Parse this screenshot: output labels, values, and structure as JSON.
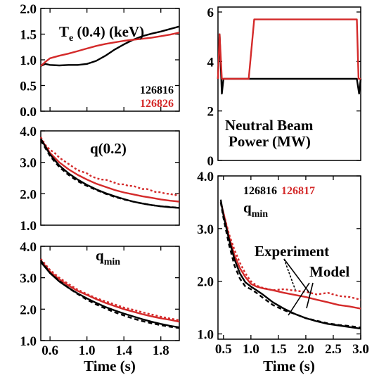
{
  "colors": {
    "black": "#000000",
    "red": "#d42a2a"
  },
  "chart_data": [
    {
      "id": "te",
      "type": "line",
      "title": "T_e (0.4) (keV)",
      "title_main": "T",
      "title_sub": "e",
      "title_rest": " (0.4) (keV)",
      "xlim": [
        0.5,
        2.0
      ],
      "ylim": [
        0.0,
        2.0
      ],
      "xticks": [
        0.6,
        1.0,
        1.4,
        1.8
      ],
      "yticks": [
        0.0,
        0.5,
        1.0,
        1.5,
        2.0
      ],
      "ytick_labels": [
        "0.0",
        "0.5",
        "1.0",
        "1.5",
        "2.0"
      ],
      "legend": [
        {
          "label": "126816",
          "color": "#000000"
        },
        {
          "label": "126826",
          "color": "#d42a2a"
        }
      ],
      "series": [
        {
          "color": "#000000",
          "style": "solid",
          "x": [
            0.5,
            0.55,
            0.6,
            0.7,
            0.8,
            0.9,
            1.0,
            1.1,
            1.2,
            1.3,
            1.4,
            1.5,
            1.6,
            1.7,
            1.8,
            1.9,
            2.0
          ],
          "y": [
            0.88,
            0.92,
            0.9,
            0.89,
            0.9,
            0.9,
            0.92,
            0.98,
            1.08,
            1.2,
            1.3,
            1.39,
            1.46,
            1.51,
            1.55,
            1.6,
            1.65
          ]
        },
        {
          "color": "#d42a2a",
          "style": "solid",
          "x": [
            0.5,
            0.55,
            0.6,
            0.7,
            0.8,
            0.9,
            1.0,
            1.1,
            1.2,
            1.3,
            1.4,
            1.5,
            1.6,
            1.7,
            1.8,
            1.9,
            2.0
          ],
          "y": [
            0.88,
            0.96,
            1.03,
            1.08,
            1.12,
            1.17,
            1.22,
            1.27,
            1.31,
            1.34,
            1.37,
            1.39,
            1.41,
            1.43,
            1.46,
            1.49,
            1.53
          ]
        }
      ]
    },
    {
      "id": "power",
      "type": "line",
      "title": "Neutral Beam Power (MW)",
      "title_line1": "Neutral Beam",
      "title_line2": "Power (MW)",
      "xlim": [
        0.4,
        3.0
      ],
      "ylim": [
        0.0,
        6.2
      ],
      "yticks": [
        0,
        2,
        4,
        6
      ],
      "ytick_labels": [
        "0",
        "2",
        "4",
        "6"
      ],
      "series": [
        {
          "color": "#000000",
          "style": "solid",
          "x": [
            0.4,
            0.43,
            0.47,
            0.5,
            0.55,
            1.0,
            2.9,
            2.93,
            2.97,
            3.0
          ],
          "y": [
            3.3,
            5.1,
            2.7,
            3.3,
            3.3,
            3.3,
            3.3,
            3.3,
            2.7,
            3.3
          ]
        },
        {
          "color": "#d42a2a",
          "style": "solid",
          "x": [
            0.4,
            0.43,
            0.47,
            0.5,
            0.55,
            0.96,
            1.06,
            2.93,
            2.96,
            3.0
          ],
          "y": [
            3.3,
            5.1,
            3.3,
            3.3,
            3.3,
            3.3,
            5.7,
            5.7,
            3.3,
            3.3
          ]
        }
      ]
    },
    {
      "id": "q02",
      "type": "line",
      "title": "q(0.2)",
      "xlim": [
        0.5,
        2.0
      ],
      "ylim": [
        1.0,
        4.0
      ],
      "yticks": [
        1.0,
        2.0,
        3.0,
        4.0
      ],
      "ytick_labels": [
        "1.0",
        "2.0",
        "3.0",
        "4.0"
      ],
      "series": [
        {
          "color": "#d42a2a",
          "style": "dotted",
          "x": [
            0.5,
            0.55,
            0.6,
            0.65,
            0.7,
            0.75,
            0.8,
            0.85,
            0.9,
            0.95,
            1.0,
            1.05,
            1.1,
            1.15,
            1.2,
            1.25,
            1.3,
            1.35,
            1.4,
            1.45,
            1.5,
            1.55,
            1.6,
            1.65,
            1.7,
            1.75,
            1.8,
            1.85,
            1.9,
            1.95,
            2.0
          ],
          "y": [
            3.8,
            3.55,
            3.4,
            3.3,
            3.15,
            3.05,
            2.95,
            2.85,
            2.75,
            2.7,
            2.65,
            2.55,
            2.5,
            2.45,
            2.45,
            2.4,
            2.35,
            2.3,
            2.3,
            2.25,
            2.25,
            2.2,
            2.15,
            2.15,
            2.1,
            2.05,
            2.05,
            2.0,
            2.0,
            1.95,
            2.0
          ]
        },
        {
          "color": "#d42a2a",
          "style": "solid",
          "x": [
            0.5,
            0.6,
            0.7,
            0.8,
            0.9,
            1.0,
            1.1,
            1.2,
            1.3,
            1.4,
            1.5,
            1.6,
            1.7,
            1.8,
            1.9,
            2.0
          ],
          "y": [
            3.75,
            3.3,
            3.0,
            2.78,
            2.6,
            2.45,
            2.32,
            2.22,
            2.12,
            2.04,
            1.98,
            1.92,
            1.87,
            1.82,
            1.78,
            1.75
          ]
        },
        {
          "color": "#000000",
          "style": "dashed",
          "x": [
            0.5,
            0.6,
            0.7,
            0.8,
            0.9,
            1.0,
            1.1,
            1.2,
            1.3,
            1.4,
            1.5,
            1.6,
            1.7,
            1.8,
            1.9,
            2.0
          ],
          "y": [
            3.7,
            3.2,
            2.85,
            2.6,
            2.4,
            2.25,
            2.12,
            2.0,
            1.9,
            1.82,
            1.75,
            1.69,
            1.64,
            1.6,
            1.58,
            1.55
          ]
        },
        {
          "color": "#000000",
          "style": "solid",
          "x": [
            0.5,
            0.6,
            0.7,
            0.8,
            0.9,
            1.0,
            1.1,
            1.2,
            1.3,
            1.4,
            1.5,
            1.6,
            1.7,
            1.8,
            1.9,
            2.0
          ],
          "y": [
            3.75,
            3.25,
            2.9,
            2.65,
            2.45,
            2.28,
            2.14,
            2.02,
            1.92,
            1.83,
            1.75,
            1.69,
            1.64,
            1.6,
            1.57,
            1.55
          ]
        }
      ]
    },
    {
      "id": "qmin_left",
      "type": "line",
      "title": "q_min",
      "title_main": "q",
      "title_sub": "min",
      "xlim": [
        0.5,
        2.0
      ],
      "ylim": [
        1.0,
        4.0
      ],
      "xticks": [
        0.6,
        1.0,
        1.4,
        1.8
      ],
      "xtick_labels": [
        "0.6",
        "1.0",
        "1.4",
        "1.8"
      ],
      "yticks": [
        1.0,
        2.0,
        3.0,
        4.0
      ],
      "ytick_labels": [
        "1.0",
        "2.0",
        "3.0",
        "4.0"
      ],
      "xlabel": "Time (s)",
      "series": [
        {
          "color": "#d42a2a",
          "style": "dotted",
          "x": [
            0.5,
            0.6,
            0.7,
            0.8,
            0.9,
            1.0,
            1.1,
            1.2,
            1.3,
            1.4,
            1.5,
            1.6,
            1.7,
            1.8,
            1.9,
            2.0
          ],
          "y": [
            3.6,
            3.25,
            3.0,
            2.8,
            2.62,
            2.48,
            2.35,
            2.25,
            2.15,
            2.05,
            1.98,
            1.9,
            1.83,
            1.76,
            1.7,
            1.65
          ]
        },
        {
          "color": "#d42a2a",
          "style": "solid",
          "x": [
            0.5,
            0.6,
            0.7,
            0.8,
            0.9,
            1.0,
            1.1,
            1.2,
            1.3,
            1.4,
            1.5,
            1.6,
            1.7,
            1.8,
            1.9,
            2.0
          ],
          "y": [
            3.55,
            3.2,
            2.95,
            2.75,
            2.58,
            2.45,
            2.32,
            2.2,
            2.1,
            2.0,
            1.92,
            1.84,
            1.77,
            1.71,
            1.66,
            1.6
          ]
        },
        {
          "color": "#000000",
          "style": "dashed",
          "x": [
            0.5,
            0.6,
            0.7,
            0.8,
            0.9,
            1.0,
            1.1,
            1.2,
            1.3,
            1.4,
            1.5,
            1.6,
            1.7,
            1.8,
            1.9,
            2.0
          ],
          "y": [
            3.55,
            3.15,
            2.9,
            2.68,
            2.48,
            2.3,
            2.15,
            2.02,
            1.9,
            1.8,
            1.7,
            1.62,
            1.55,
            1.49,
            1.44,
            1.4
          ]
        },
        {
          "color": "#000000",
          "style": "solid",
          "x": [
            0.5,
            0.6,
            0.7,
            0.8,
            0.9,
            1.0,
            1.1,
            1.2,
            1.3,
            1.4,
            1.5,
            1.6,
            1.7,
            1.8,
            1.9,
            2.0
          ],
          "y": [
            3.5,
            3.15,
            2.88,
            2.68,
            2.5,
            2.34,
            2.2,
            2.07,
            1.96,
            1.86,
            1.77,
            1.68,
            1.6,
            1.53,
            1.47,
            1.42
          ]
        }
      ]
    },
    {
      "id": "qmin_right",
      "type": "line",
      "title": "q_min",
      "title_main": "q",
      "title_sub": "min",
      "xlim": [
        0.4,
        3.0
      ],
      "ylim": [
        0.9,
        4.0
      ],
      "xticks": [
        0.5,
        1.0,
        1.5,
        2.0,
        2.5,
        3.0
      ],
      "xtick_labels": [
        "0.5",
        "1.0",
        "1.5",
        "2.0",
        "2.5",
        "3.0"
      ],
      "yticks": [
        1.0,
        2.0,
        3.0,
        4.0
      ],
      "ytick_labels": [
        "1.0",
        "2.0",
        "3.0",
        "4.0"
      ],
      "xlabel": "Time (s)",
      "legend": [
        {
          "label": "126816",
          "color": "#000000"
        },
        {
          "label": "126817",
          "color": "#d42a2a"
        }
      ],
      "annotations": {
        "experiment": "Experiment",
        "model": "Model"
      },
      "series": [
        {
          "color": "#d42a2a",
          "style": "dotted",
          "x": [
            0.45,
            0.5,
            0.6,
            0.7,
            0.8,
            0.9,
            1.0,
            1.1,
            1.2,
            1.4,
            1.6,
            1.8,
            2.0,
            2.2,
            2.4,
            2.6,
            2.8,
            3.0
          ],
          "y": [
            3.5,
            3.3,
            2.9,
            2.6,
            2.35,
            2.15,
            2.0,
            1.92,
            1.88,
            1.83,
            1.85,
            1.82,
            1.8,
            1.75,
            1.78,
            1.72,
            1.7,
            1.65
          ]
        },
        {
          "color": "#d42a2a",
          "style": "solid",
          "x": [
            0.45,
            0.5,
            0.6,
            0.7,
            0.8,
            0.9,
            1.0,
            1.1,
            1.2,
            1.4,
            1.6,
            1.8,
            2.0,
            2.2,
            2.4,
            2.6,
            2.8,
            3.0
          ],
          "y": [
            3.5,
            3.3,
            2.85,
            2.5,
            2.25,
            2.08,
            1.95,
            1.9,
            1.87,
            1.83,
            1.78,
            1.74,
            1.7,
            1.65,
            1.6,
            1.55,
            1.52,
            1.48
          ]
        },
        {
          "color": "#000000",
          "style": "dashed",
          "x": [
            0.45,
            0.5,
            0.6,
            0.7,
            0.8,
            0.9,
            1.0,
            1.1,
            1.2,
            1.4,
            1.6,
            1.8,
            2.0,
            2.2,
            2.4,
            2.6,
            2.8,
            3.0
          ],
          "y": [
            3.5,
            3.2,
            2.7,
            2.3,
            2.05,
            1.9,
            1.85,
            1.78,
            1.7,
            1.55,
            1.45,
            1.38,
            1.3,
            1.25,
            1.2,
            1.17,
            1.15,
            1.12
          ]
        },
        {
          "color": "#000000",
          "style": "solid",
          "x": [
            0.45,
            0.5,
            0.6,
            0.7,
            0.8,
            0.9,
            1.0,
            1.1,
            1.2,
            1.4,
            1.6,
            1.8,
            2.0,
            2.2,
            2.4,
            2.6,
            2.8,
            3.0
          ],
          "y": [
            3.55,
            3.25,
            2.8,
            2.42,
            2.15,
            1.98,
            1.9,
            1.83,
            1.76,
            1.6,
            1.48,
            1.38,
            1.3,
            1.24,
            1.19,
            1.16,
            1.13,
            1.1
          ]
        }
      ]
    }
  ]
}
